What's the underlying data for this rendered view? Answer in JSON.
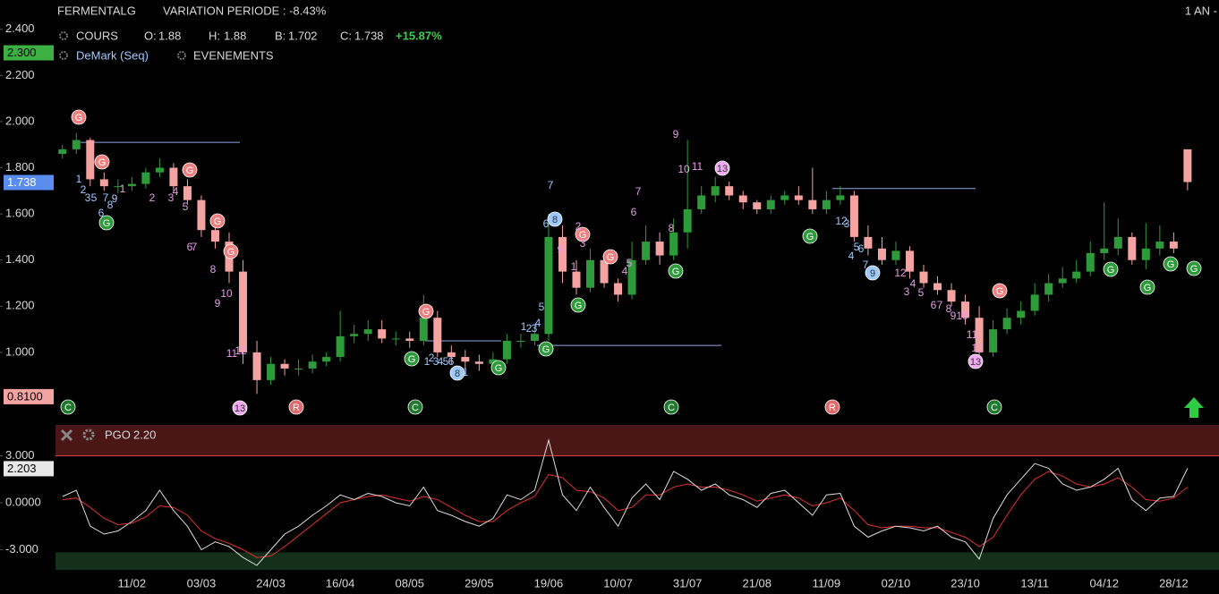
{
  "header": {
    "symbol": "FERMENTALG",
    "variation": "VARIATION PERIODE : -8.43%",
    "period": "1 AN -",
    "price_label": "COURS",
    "open_label": "O:",
    "high_label": "H:",
    "low_label": "B:",
    "close_label": "C:",
    "change": "+15.87%",
    "study": "DeMark (Seq)",
    "events": "EVENEMENTS"
  },
  "chart_data": [
    {
      "type": "candlestick",
      "categories": [
        null,
        null,
        null,
        null,
        null,
        "11/02",
        null,
        null,
        null,
        null,
        "03/03",
        null,
        null,
        null,
        null,
        "24/03",
        null,
        null,
        null,
        null,
        "16/04",
        null,
        null,
        null,
        null,
        "08/05",
        null,
        null,
        null,
        null,
        "29/05",
        null,
        null,
        null,
        null,
        "19/06",
        null,
        null,
        null,
        null,
        "10/07",
        null,
        null,
        null,
        null,
        "31/07",
        null,
        null,
        null,
        null,
        "21/08",
        null,
        null,
        null,
        null,
        "11/09",
        null,
        null,
        null,
        null,
        "02/10",
        null,
        null,
        null,
        null,
        "23/10",
        null,
        null,
        null,
        null,
        "13/11",
        null,
        null,
        null,
        null,
        "04/12",
        null,
        null,
        null,
        null,
        "28/12",
        null
      ],
      "open": [
        1.86,
        1.88,
        1.92,
        1.75,
        1.72,
        1.72,
        1.73,
        1.78,
        1.8,
        1.72,
        1.66,
        1.53,
        1.48,
        1.35,
        1.0,
        0.88,
        0.95,
        0.93,
        0.93,
        0.96,
        0.98,
        1.07,
        1.08,
        1.1,
        1.06,
        1.06,
        1.05,
        1.15,
        1.0,
        0.98,
        0.96,
        0.95,
        0.97,
        1.05,
        1.05,
        1.08,
        1.5,
        1.35,
        1.28,
        1.4,
        1.3,
        1.25,
        1.4,
        1.48,
        1.42,
        1.52,
        1.62,
        1.68,
        1.72,
        1.68,
        1.65,
        1.62,
        1.66,
        1.68,
        1.66,
        1.62,
        1.66,
        1.68,
        1.5,
        1.45,
        1.4,
        1.44,
        1.35,
        1.3,
        1.27,
        1.22,
        1.15,
        1.0,
        1.1,
        1.15,
        1.18,
        1.25,
        1.3,
        1.32,
        1.35,
        1.43,
        1.45,
        1.5,
        1.4,
        1.45,
        1.48,
        1.88
      ],
      "high": [
        1.9,
        1.95,
        1.93,
        1.78,
        1.75,
        1.76,
        1.8,
        1.84,
        1.82,
        1.75,
        1.68,
        1.58,
        1.52,
        1.4,
        1.05,
        0.98,
        0.97,
        0.97,
        0.99,
        1.0,
        1.18,
        1.12,
        1.14,
        1.14,
        1.09,
        1.09,
        1.25,
        1.18,
        1.03,
        1.01,
        0.99,
        1.0,
        1.08,
        1.08,
        1.12,
        1.6,
        1.55,
        1.4,
        1.45,
        1.42,
        1.32,
        1.48,
        1.55,
        1.52,
        1.58,
        1.92,
        1.72,
        1.76,
        1.74,
        1.7,
        1.66,
        1.68,
        1.7,
        1.72,
        1.8,
        1.7,
        1.72,
        1.7,
        1.55,
        1.5,
        1.48,
        1.46,
        1.38,
        1.33,
        1.3,
        1.25,
        1.2,
        1.14,
        1.19,
        1.22,
        1.3,
        1.34,
        1.37,
        1.4,
        1.48,
        1.65,
        1.58,
        1.52,
        1.56,
        1.55,
        1.52,
        1.88
      ],
      "low": [
        1.84,
        1.86,
        1.72,
        1.7,
        1.69,
        1.7,
        1.71,
        1.76,
        1.7,
        1.64,
        1.5,
        1.45,
        1.3,
        0.95,
        0.82,
        0.86,
        0.9,
        0.9,
        0.91,
        0.94,
        0.96,
        1.04,
        1.05,
        1.04,
        1.03,
        1.02,
        1.03,
        0.98,
        0.95,
        0.93,
        0.92,
        0.93,
        0.95,
        1.02,
        1.03,
        1.05,
        1.3,
        1.25,
        1.26,
        1.28,
        1.22,
        1.23,
        1.38,
        1.38,
        1.4,
        1.45,
        1.6,
        1.65,
        1.66,
        1.62,
        1.6,
        1.6,
        1.64,
        1.64,
        1.6,
        1.6,
        1.64,
        1.48,
        1.42,
        1.38,
        1.38,
        1.32,
        1.28,
        1.25,
        1.2,
        1.12,
        0.98,
        0.98,
        1.08,
        1.12,
        1.16,
        1.22,
        1.28,
        1.3,
        1.33,
        1.4,
        1.42,
        1.38,
        1.36,
        1.42,
        1.43,
        1.702
      ],
      "close": [
        1.88,
        1.92,
        1.75,
        1.72,
        1.72,
        1.73,
        1.78,
        1.8,
        1.72,
        1.66,
        1.53,
        1.48,
        1.35,
        1.0,
        0.88,
        0.95,
        0.93,
        0.93,
        0.96,
        0.98,
        1.07,
        1.08,
        1.1,
        1.06,
        1.06,
        1.05,
        1.15,
        1.0,
        0.98,
        0.96,
        0.95,
        0.97,
        1.05,
        1.05,
        1.08,
        1.5,
        1.35,
        1.28,
        1.4,
        1.3,
        1.25,
        1.4,
        1.48,
        1.42,
        1.52,
        1.62,
        1.68,
        1.72,
        1.68,
        1.65,
        1.62,
        1.66,
        1.68,
        1.66,
        1.62,
        1.66,
        1.68,
        1.5,
        1.45,
        1.4,
        1.44,
        1.35,
        1.3,
        1.27,
        1.22,
        1.15,
        1.0,
        1.1,
        1.15,
        1.18,
        1.25,
        1.3,
        1.32,
        1.35,
        1.43,
        1.45,
        1.5,
        1.4,
        1.45,
        1.48,
        1.45,
        1.738
      ],
      "up_color": "#2e9b3a",
      "down_color": "#f4a3a3",
      "ylim": [
        0.705,
        2.43
      ],
      "yticks": [
        {
          "value": 2.4,
          "label": "2.400"
        },
        {
          "value": 2.2,
          "label": "2.200"
        },
        {
          "value": 2.0,
          "label": "2.000"
        },
        {
          "value": 1.8,
          "label": "1.800"
        },
        {
          "value": 1.6,
          "label": "1.600"
        },
        {
          "value": 1.4,
          "label": "1.400"
        },
        {
          "value": 1.2,
          "label": "1.200"
        },
        {
          "value": 1.0,
          "label": "1.000"
        }
      ],
      "badges": [
        {
          "value": 2.3,
          "label": "2.300",
          "color": "#3cb043"
        },
        {
          "value": 0.81,
          "label": "0.8100",
          "color": "#f4a3a3"
        }
      ],
      "last_color": "#5b8def",
      "levels": [
        1.91,
        1.05,
        1.03,
        1.71
      ],
      "level_color": "#8fa8e8",
      "signals": [
        {
          "label": "G",
          "color": "#f08080"
        },
        {
          "label": "G",
          "color": "#f08080"
        },
        {
          "label": "G",
          "color": "#f08080"
        },
        {
          "label": "G",
          "color": "#f08080"
        },
        {
          "label": "G",
          "color": "#f08080"
        },
        {
          "label": "G",
          "color": "#f08080"
        },
        {
          "label": "G",
          "color": "#f08080"
        },
        {
          "label": "G",
          "color": "#f08080"
        },
        {
          "label": "G",
          "color": "#f08080"
        },
        {
          "label": "G",
          "color": "#2e9b3a"
        },
        {
          "label": "G",
          "color": "#2e9b3a"
        },
        {
          "label": "G",
          "color": "#2e9b3a"
        },
        {
          "label": "G",
          "color": "#2e9b3a"
        },
        {
          "label": "G",
          "color": "#2e9b3a"
        },
        {
          "label": "G",
          "color": "#2e9b3a"
        },
        {
          "label": "G",
          "color": "#2e9b3a"
        },
        {
          "label": "G",
          "color": "#2e9b3a"
        },
        {
          "label": "G",
          "color": "#2e9b3a"
        },
        {
          "label": "G",
          "color": "#2e9b3a"
        },
        {
          "label": "G",
          "color": "#2e9b3a"
        },
        {
          "label": "C",
          "color": "#1f7a2e"
        },
        {
          "label": "C",
          "color": "#1f7a2e"
        },
        {
          "label": "C",
          "color": "#1f7a2e"
        },
        {
          "label": "C",
          "color": "#1f7a2e"
        },
        {
          "label": "R",
          "color": "#e06a6a"
        },
        {
          "label": "R",
          "color": "#e06a6a"
        },
        {
          "label": "8",
          "color": "#9ec9ff"
        },
        {
          "label": "8",
          "color": "#9ec9ff"
        },
        {
          "label": "9",
          "color": "#9ec9ff"
        },
        {
          "label": "13",
          "color": "#f0a8f0"
        },
        {
          "label": "13",
          "color": "#f0a8f0"
        },
        {
          "label": "13",
          "color": "#f0a8f0"
        }
      ],
      "demark_buy": [
        "1",
        "2",
        "3",
        "5",
        "7",
        "8",
        "9",
        "6",
        "1",
        "2",
        "3",
        "4",
        "5",
        "6",
        "1",
        "5",
        "6",
        "7",
        "1",
        "2",
        "3",
        "4",
        "12",
        "3",
        "4",
        "5",
        "6",
        "7"
      ],
      "demark_sell": [
        "1",
        "2",
        "3",
        "4",
        "5",
        "6",
        "7",
        "8",
        "9",
        "10",
        "11",
        "12",
        "9",
        "1",
        "2",
        "3",
        "4",
        "5",
        "6",
        "7",
        "8",
        "9",
        "10",
        "11",
        "12",
        "3",
        "4",
        "5",
        "6",
        "7",
        "8",
        "9",
        "10",
        "11",
        "12"
      ],
      "buy_color": "#9ec9ff",
      "sell_color": "#e89ce8"
    },
    {
      "type": "line",
      "indicator": "PGO",
      "parameter": "2.20",
      "series": [
        {
          "color": "#dddddd",
          "values": [
            0.4,
            0.8,
            -1.5,
            -2.0,
            -1.8,
            -1.2,
            -0.5,
            0.8,
            -0.5,
            -1.5,
            -3.0,
            -2.5,
            -2.8,
            -3.5,
            -4.0,
            -3.0,
            -2.0,
            -1.5,
            -0.8,
            -0.2,
            0.5,
            0.2,
            0.6,
            0.4,
            0.0,
            -0.2,
            1.0,
            -0.5,
            -0.8,
            -1.2,
            -1.5,
            -1.0,
            0.5,
            0.2,
            0.8,
            4.0,
            0.5,
            -0.5,
            1.0,
            -0.3,
            -1.5,
            0.3,
            1.2,
            0.2,
            2.0,
            1.5,
            0.8,
            1.2,
            0.5,
            0.2,
            -0.3,
            0.6,
            0.8,
            0.0,
            -0.8,
            0.5,
            0.6,
            -1.5,
            -2.2,
            -1.8,
            -1.5,
            -1.6,
            -1.8,
            -1.5,
            -2.2,
            -2.5,
            -3.6,
            -1.0,
            0.5,
            1.5,
            2.5,
            2.2,
            1.2,
            0.8,
            1.0,
            1.5,
            2.2,
            0.2,
            -0.5,
            0.3,
            0.4,
            2.203
          ]
        },
        {
          "color": "#e03030",
          "values": [
            0.2,
            0.3,
            -0.3,
            -1.0,
            -1.4,
            -1.3,
            -0.9,
            -0.2,
            -0.3,
            -0.8,
            -1.8,
            -2.3,
            -2.6,
            -3.0,
            -3.5,
            -3.4,
            -2.8,
            -2.1,
            -1.4,
            -0.7,
            0.0,
            0.2,
            0.4,
            0.5,
            0.3,
            0.1,
            0.4,
            0.2,
            -0.3,
            -0.8,
            -1.2,
            -1.2,
            -0.5,
            0.0,
            0.4,
            1.8,
            1.6,
            0.8,
            0.7,
            0.3,
            -0.5,
            -0.3,
            0.5,
            0.5,
            1.0,
            1.2,
            1.0,
            1.0,
            0.8,
            0.5,
            0.1,
            0.3,
            0.5,
            0.3,
            -0.2,
            0.0,
            0.3,
            -0.5,
            -1.4,
            -1.6,
            -1.5,
            -1.5,
            -1.6,
            -1.6,
            -1.9,
            -2.2,
            -2.8,
            -2.2,
            -0.8,
            0.5,
            1.5,
            2.0,
            1.7,
            1.2,
            1.0,
            1.2,
            1.6,
            1.0,
            0.2,
            0.1,
            0.3,
            1.0
          ]
        }
      ],
      "ylim": [
        -4.46,
        4.97
      ],
      "yticks": [
        {
          "value": 3,
          "label": "3.000"
        },
        {
          "value": 0,
          "label": "0.0000"
        },
        {
          "value": -3,
          "label": "-3.000"
        }
      ],
      "upper_band": 3,
      "lower_band": -3,
      "upper_color": "#4a1616",
      "upper_line": "#e04040",
      "lower_color": "#15301a"
    }
  ]
}
